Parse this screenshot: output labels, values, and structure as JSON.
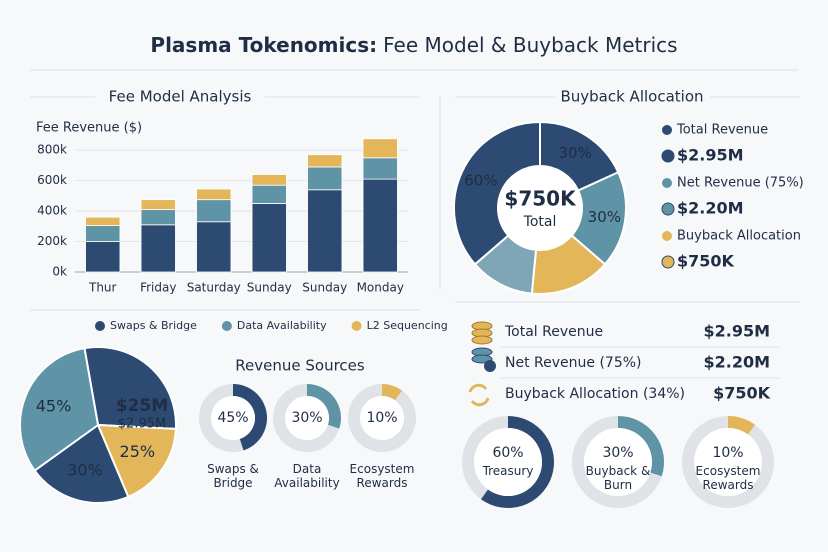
{
  "title": {
    "bold": "Plasma Tokenomics:",
    "rest": "Fee Model & Buyback Metrics"
  },
  "chart_data": [
    {
      "type": "bar",
      "stacked": true,
      "title": "Fee Model Analysis",
      "y_label": "Fee Revenue ($)",
      "categories": [
        "Thur",
        "Friday",
        "Saturday",
        "Sunday",
        "Sunday",
        "Monday"
      ],
      "series": [
        {
          "name": "Swaps & Bridge",
          "color": "#2d4a73",
          "values": [
            200000,
            310000,
            330000,
            450000,
            540000,
            610000
          ]
        },
        {
          "name": "Data Availability",
          "color": "#5f93a6",
          "values": [
            105000,
            100000,
            145000,
            120000,
            150000,
            140000
          ]
        },
        {
          "name": "L2 Sequencing",
          "color": "#e2b659",
          "values": [
            55000,
            65000,
            70000,
            70000,
            80000,
            125000
          ]
        }
      ],
      "ylim": [
        0,
        880000
      ],
      "yticks": [
        {
          "value": 0,
          "label": "0k"
        },
        {
          "value": 200000,
          "label": "200k"
        },
        {
          "value": 400000,
          "label": "400k"
        },
        {
          "value": 600000,
          "label": "600k"
        },
        {
          "value": 800000,
          "label": "800k"
        }
      ],
      "grid": true
    },
    {
      "type": "donut",
      "title": "Buyback Allocation",
      "values": [
        30,
        30,
        25,
        20,
        60
      ],
      "value_labels": [
        "30%",
        "30%",
        null,
        null,
        "60%"
      ],
      "colors": [
        "#2d4a73",
        "#5f93a6",
        "#e2b659",
        "#7fa6b6",
        "#2d4a73"
      ],
      "center_value": "$750K",
      "center_label": "Total"
    },
    {
      "type": "pie",
      "values": [
        40,
        25,
        30,
        45
      ],
      "value_labels": [
        null,
        "25%",
        "30%",
        "45%"
      ],
      "colors": [
        "#2d4a73",
        "#e2b659",
        "#2d4a73",
        "#5f93a6"
      ],
      "annotations": [
        "$25M",
        "$2.95M"
      ]
    },
    {
      "type": "gauge",
      "title": "Revenue Sources",
      "values": [
        45,
        30,
        10
      ],
      "value_labels": [
        "45%",
        "30%",
        "10%"
      ],
      "categories": [
        "Swaps & Bridge",
        "Data Availability",
        "Ecosystem Rewards"
      ],
      "colors": [
        "#2d4a73",
        "#5f93a6",
        "#e2b659"
      ]
    },
    {
      "type": "gauge",
      "values": [
        60,
        30,
        10
      ],
      "value_labels": [
        "60%",
        "30%",
        "10%"
      ],
      "categories": [
        "Treasury",
        "Buyback & Burn",
        "Ecosystem Rewards"
      ],
      "colors": [
        "#2d4a73",
        "#5f93a6",
        "#e2b659"
      ]
    }
  ],
  "legend_panel": [
    {
      "label": "Total Revenue",
      "value": "$2.95M",
      "color": "#2d4a73"
    },
    {
      "label": "Net Revenue (75%)",
      "value": "$2.20M",
      "color": "#5f93a6"
    },
    {
      "label": "Buyback Allocation",
      "value": "$750K",
      "color": "#e2b659"
    }
  ],
  "summary_table": {
    "rows": [
      [
        "Total Revenue",
        "$2.95M"
      ],
      [
        "Net Revenue (75%)",
        "$2.20M"
      ],
      [
        "Buyback Allocation (34%)",
        "$750K"
      ]
    ]
  }
}
